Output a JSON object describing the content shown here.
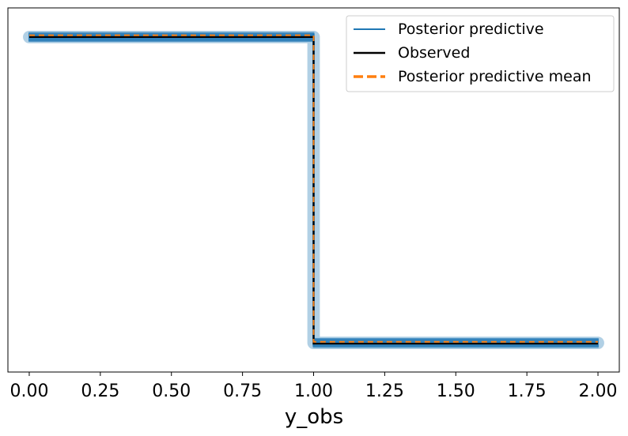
{
  "chart_data": {
    "type": "line",
    "xlabel": "y_obs",
    "ylabel": "",
    "xlim": [
      -0.075,
      2.075
    ],
    "ylim": [
      0.0,
      1.0
    ],
    "x_ticks": [
      0.0,
      0.25,
      0.5,
      0.75,
      1.0,
      1.25,
      1.5,
      1.75,
      2.0
    ],
    "x_tick_labels": [
      "0.00",
      "0.25",
      "0.50",
      "0.75",
      "1.00",
      "1.25",
      "1.50",
      "1.75",
      "2.00"
    ],
    "y_ticks_visible": false,
    "grid": false,
    "legend_position": "top-right",
    "series": [
      {
        "name": "Posterior predictive",
        "color": "#1f77b4",
        "style": "solid",
        "kind": "band",
        "points": [
          [
            0.0,
            0.92
          ],
          [
            1.0,
            0.92
          ],
          [
            1.0,
            0.08
          ],
          [
            2.0,
            0.08
          ]
        ],
        "spread": 0.03
      },
      {
        "name": "Observed",
        "color": "#000000",
        "style": "solid",
        "points": [
          [
            0.0,
            0.92
          ],
          [
            1.0,
            0.92
          ],
          [
            1.0,
            0.078
          ],
          [
            2.0,
            0.078
          ]
        ]
      },
      {
        "name": "Posterior predictive mean",
        "color": "#ff7f0e",
        "style": "dashed",
        "points": [
          [
            0.0,
            0.925
          ],
          [
            1.0,
            0.925
          ],
          [
            1.0,
            0.083
          ],
          [
            2.0,
            0.083
          ]
        ]
      }
    ]
  }
}
